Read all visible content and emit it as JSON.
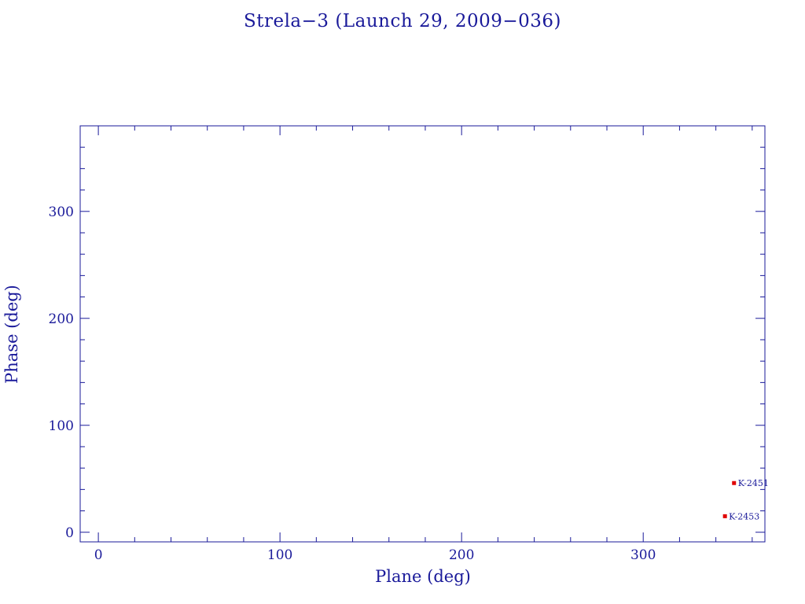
{
  "chart_data": {
    "type": "scatter",
    "title": "Strela−3 (Launch 29, 2009−036)",
    "xlabel": "Plane (deg)",
    "ylabel": "Phase (deg)",
    "xlim": [
      -10,
      367
    ],
    "ylim": [
      -9,
      380
    ],
    "x_ticks": [
      "0",
      "100",
      "200",
      "300"
    ],
    "y_ticks": [
      "0",
      "100",
      "200",
      "300"
    ],
    "grid": false,
    "points": [
      {
        "label": "K-2451",
        "x": 350,
        "y": 46
      },
      {
        "label": "K-2453",
        "x": 345,
        "y": 15
      }
    ],
    "colors": {
      "axis": "#1a1a9a",
      "marker": "#e00000",
      "text": "#1a1a9a"
    }
  }
}
